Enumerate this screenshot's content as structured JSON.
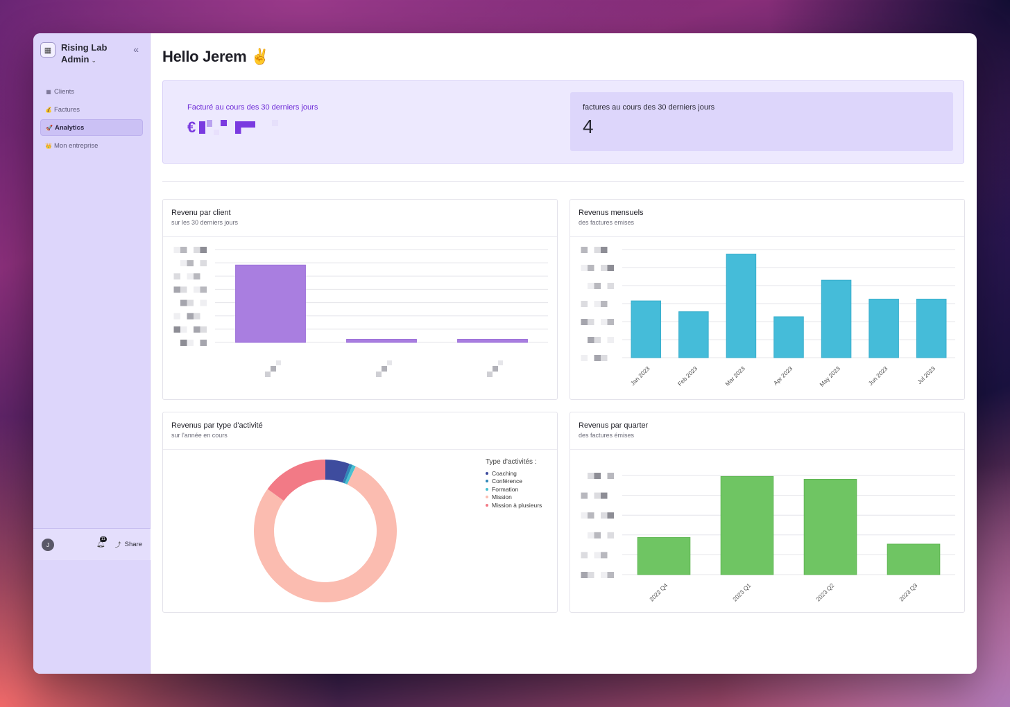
{
  "sidebar": {
    "brand_line1": "Rising Lab",
    "brand_line2": "Admin",
    "logo_icon": "calculator-icon",
    "collapse_icon": "«",
    "items": [
      {
        "icon": "building-icon",
        "glyph": "▦",
        "label": "Clients",
        "active": false
      },
      {
        "icon": "money-bag-icon",
        "glyph": "💰",
        "label": "Factures",
        "active": false
      },
      {
        "icon": "rocket-icon",
        "glyph": "🚀",
        "label": "Analytics",
        "active": true
      },
      {
        "icon": "crown-icon",
        "glyph": "👑",
        "label": "Mon entreprise",
        "active": false
      }
    ],
    "footer": {
      "avatar_initial": "J",
      "notification_count": "11",
      "share_label": "Share"
    }
  },
  "main": {
    "greeting": "Hello Jerem ✌️",
    "kpi": {
      "billed_label": "Facturé au cours des 30 derniers jours",
      "billed_currency": "€",
      "invoices_label": "factures au cours des 30 derniers jours",
      "invoices_value": "4"
    }
  },
  "colors": {
    "purple_bar": "#a97ee0",
    "blue_bar": "#45bcd9",
    "green_bar": "#6fc563",
    "mission": "#fbbcb0",
    "mission_plusieurs": "#f27a86",
    "coaching": "#3e4c9e",
    "conference": "#2f86b8",
    "formation": "#49c0d0"
  },
  "chart_data": [
    {
      "type": "bar",
      "title": "Revenu par client",
      "subtitle": "sur les 30 derniers jours",
      "categories": [
        "",
        "",
        ""
      ],
      "values": [
        100,
        4,
        4
      ]
    },
    {
      "type": "bar",
      "title": "Revenus mensuels",
      "subtitle": "des factures emises",
      "categories": [
        "Jan 2023",
        "Feb 2023",
        "Mar 2023",
        "Apr 2023",
        "May 2023",
        "Jun 2023",
        "Jul 2023"
      ],
      "values": [
        3.15,
        2.55,
        5.75,
        2.27,
        4.3,
        3.25,
        3.25
      ],
      "ylim": [
        0,
        6
      ]
    },
    {
      "type": "pie",
      "title": "Revenus par type d'activité",
      "subtitle": "sur l'année en cours",
      "legend_title": "Type d'activités :",
      "labels": [
        "Coaching",
        "Conférence",
        "Formation",
        "Mission",
        "Mission à plusieurs"
      ],
      "values": [
        5.5,
        0.7,
        0.8,
        78,
        15
      ]
    },
    {
      "type": "bar",
      "title": "Revenus par quarter",
      "subtitle": "des factures émises",
      "categories": [
        "2022 Q4",
        "2023 Q1",
        "2023 Q2",
        "2023 Q3"
      ],
      "values": [
        1.95,
        5.15,
        5.0,
        1.6
      ],
      "ylim": [
        0,
        5
      ]
    }
  ]
}
